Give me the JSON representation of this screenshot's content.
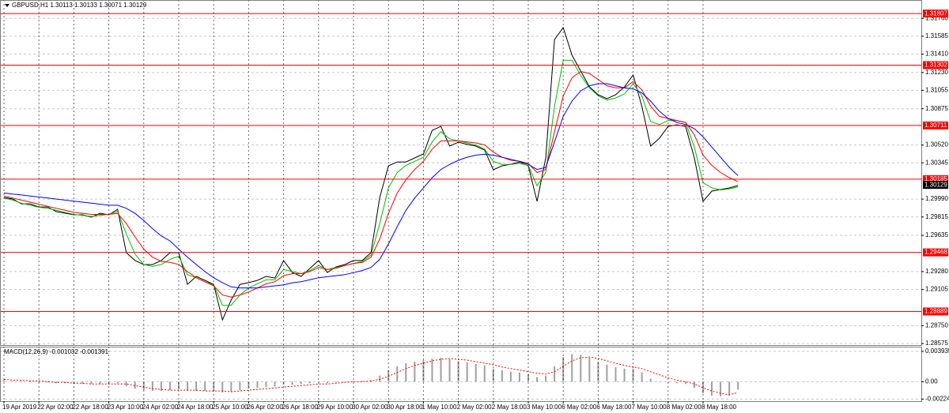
{
  "chart_data": [
    {
      "type": "line",
      "title": "GBPUSD,H1  1.30113 1.30133 1.30071 1.30129",
      "categories": [
        "19 Apr 2019",
        null,
        null,
        null,
        "22 Apr 02:00",
        null,
        null,
        null,
        "22 Apr 18:00",
        null,
        null,
        null,
        "23 Apr 10:00",
        null,
        null,
        null,
        "24 Apr 02:00",
        null,
        null,
        null,
        "24 Apr 18:00",
        null,
        null,
        null,
        "25 Apr 10:00",
        null,
        null,
        null,
        "26 Apr 02:00",
        null,
        null,
        null,
        "26 Apr 18:00",
        null,
        null,
        null,
        "29 Apr 10:00",
        null,
        null,
        null,
        "30 Apr 02:00",
        null,
        null,
        null,
        "30 Apr 18:00",
        null,
        null,
        null,
        "1 May 10:00",
        null,
        null,
        null,
        "2 May 02:00",
        null,
        null,
        null,
        "2 May 18:00",
        null,
        null,
        null,
        "3 May 10:00",
        null,
        null,
        null,
        "6 May 02:00",
        null,
        null,
        null,
        "6 May 18:00",
        null,
        null,
        null,
        "7 May 10:00",
        null,
        null,
        null,
        "8 May 02:00",
        null,
        null,
        null,
        "8 May 18:00",
        null,
        null,
        null,
        null
      ],
      "series": [
        {
          "color": "#000000",
          "values": [
            1.30006,
            1.29991,
            1.29944,
            1.29944,
            1.29913,
            1.29913,
            1.29867,
            1.29852,
            1.29836,
            1.29836,
            1.29813,
            1.29852,
            1.29836,
            1.2989,
            1.29465,
            1.29388,
            1.29349,
            1.29349,
            1.29388,
            1.29465,
            1.29465,
            1.29155,
            1.29233,
            1.29194,
            1.29155,
            1.28807,
            1.29001,
            1.29155,
            1.29171,
            1.29194,
            1.29233,
            1.29217,
            1.29388,
            1.29271,
            1.29233,
            1.2931,
            1.29388,
            1.29271,
            1.29326,
            1.29349,
            1.29388,
            1.29388,
            1.29465,
            1.30006,
            1.30316,
            1.30354,
            1.30354,
            1.30393,
            1.30432,
            1.30664,
            1.30702,
            1.30509,
            1.30548,
            1.30525,
            1.30509,
            1.3047,
            1.30277,
            1.30316,
            1.30331,
            1.30354,
            1.30316,
            1.29968,
            1.30393,
            1.31553,
            1.31669,
            1.31399,
            1.31244,
            1.31089,
            1.31012,
            1.30973,
            1.31012,
            1.31089,
            1.31205,
            1.30896,
            1.30509,
            1.30586,
            1.30702,
            1.30718,
            1.30702,
            1.30393,
            1.29968,
            1.30068,
            1.30084,
            1.30099,
            1.30122
          ]
        },
        {
          "color": "#00c000",
          "values": [
            1.3,
            1.2998,
            1.2995,
            1.2993,
            1.2991,
            1.299,
            1.2988,
            1.2986,
            1.2984,
            1.2983,
            1.2982,
            1.2983,
            1.2984,
            1.2987,
            1.2965,
            1.2945,
            1.2935,
            1.2933,
            1.2935,
            1.294,
            1.2943,
            1.2925,
            1.2922,
            1.2918,
            1.2915,
            1.2895,
            1.2895,
            1.2905,
            1.2912,
            1.2916,
            1.292,
            1.292,
            1.293,
            1.2928,
            1.2926,
            1.2929,
            1.2934,
            1.293,
            1.2931,
            1.2934,
            1.2936,
            1.2938,
            1.2944,
            1.2975,
            1.301,
            1.3025,
            1.3032,
            1.3036,
            1.304,
            1.3055,
            1.3065,
            1.3058,
            1.3056,
            1.3054,
            1.3052,
            1.3048,
            1.3036,
            1.3033,
            1.3033,
            1.3034,
            1.3032,
            1.3012,
            1.3025,
            1.309,
            1.3135,
            1.3135,
            1.312,
            1.3108,
            1.31,
            1.3096,
            1.3098,
            1.3102,
            1.3112,
            1.31,
            1.3075,
            1.3072,
            1.3076,
            1.3076,
            1.3074,
            1.305,
            1.3015,
            1.301,
            1.3008,
            1.3009,
            1.3011
          ]
        },
        {
          "color": "#ff0000",
          "values": [
            1.3002,
            1.3,
            1.2998,
            1.2996,
            1.2994,
            1.2992,
            1.299,
            1.2988,
            1.2986,
            1.2985,
            1.2984,
            1.2984,
            1.2984,
            1.2985,
            1.2975,
            1.2962,
            1.295,
            1.2942,
            1.2938,
            1.2937,
            1.2935,
            1.2928,
            1.2922,
            1.2918,
            1.2914,
            1.2905,
            1.2903,
            1.2905,
            1.2908,
            1.2912,
            1.2916,
            1.2918,
            1.2924,
            1.2926,
            1.2926,
            1.2928,
            1.2932,
            1.293,
            1.2932,
            1.2934,
            1.2936,
            1.2937,
            1.2942,
            1.296,
            1.2985,
            1.3005,
            1.3018,
            1.3028,
            1.3036,
            1.3048,
            1.3056,
            1.3056,
            1.3056,
            1.3055,
            1.3054,
            1.3052,
            1.3045,
            1.304,
            1.3037,
            1.3036,
            1.3034,
            1.3025,
            1.3028,
            1.3065,
            1.31,
            1.3118,
            1.3124,
            1.3122,
            1.3116,
            1.311,
            1.3108,
            1.3108,
            1.3114,
            1.3106,
            1.309,
            1.308,
            1.3078,
            1.3076,
            1.3074,
            1.3062,
            1.3042,
            1.3032,
            1.3025,
            1.302,
            1.3016
          ]
        },
        {
          "color": "#0000ff",
          "values": [
            1.3005,
            1.3004,
            1.3003,
            1.3002,
            1.3001,
            1.3,
            1.2999,
            1.2998,
            1.2997,
            1.2996,
            1.2995,
            1.2994,
            1.2993,
            1.2993,
            1.299,
            1.2985,
            1.2978,
            1.297,
            1.2963,
            1.2958,
            1.295,
            1.2942,
            1.2935,
            1.2928,
            1.2922,
            1.2917,
            1.2913,
            1.2912,
            1.2912,
            1.2912,
            1.2913,
            1.2914,
            1.2915,
            1.2917,
            1.2918,
            1.292,
            1.2922,
            1.2923,
            1.2924,
            1.2925,
            1.2927,
            1.2929,
            1.2932,
            1.294,
            1.2955,
            1.2972,
            1.2988,
            1.3,
            1.301,
            1.302,
            1.3028,
            1.3033,
            1.3037,
            1.304,
            1.3042,
            1.3043,
            1.3042,
            1.304,
            1.3038,
            1.3036,
            1.3033,
            1.3028,
            1.303,
            1.3055,
            1.308,
            1.3095,
            1.3105,
            1.311,
            1.3112,
            1.3112,
            1.311,
            1.3108,
            1.3107,
            1.3103,
            1.3095,
            1.3085,
            1.3078,
            1.3074,
            1.3072,
            1.3068,
            1.306,
            1.305,
            1.304,
            1.303,
            1.3022
          ]
        }
      ],
      "ylim": [
        1.2856,
        1.3194
      ],
      "yticks": [
        {
          "value": 1.3176,
          "label": "1.31760"
        },
        1.31585,
        {
          "value": 1.3141,
          "label": "1.31410"
        },
        {
          "value": 1.3123,
          "label": "1.31230"
        },
        1.31055,
        1.30875,
        {
          "value": 1.3052,
          "label": "1.30520"
        },
        1.30345,
        {
          "value": 1.2999,
          "label": "1.29990"
        },
        1.29815,
        1.29635,
        {
          "value": 1.2928,
          "label": "1.29280"
        },
        1.29105,
        {
          "value": 1.2875,
          "label": "1.28750"
        },
        1.28575
      ],
      "levels": [
        1.31807,
        1.31302,
        1.30711,
        1.30185,
        1.29468,
        1.28889
      ],
      "level_color": "#ff0000",
      "last_price": 1.30129,
      "grid": true
    },
    {
      "type": "macd",
      "title": "MACD(12,26,9) -0.001032 -0.001391",
      "series": [
        {
          "style": "histogram",
          "color": "#a0a0a0",
          "values": [
            0.0002,
            0.0001,
            0.0001,
            0,
            -0.0001,
            -0.0001,
            -0.0002,
            -0.0002,
            -0.0003,
            -0.0003,
            -0.0003,
            -0.0003,
            -0.0003,
            -0.0002,
            -0.0006,
            -0.0009,
            -0.0011,
            -0.0012,
            -0.0012,
            -0.0011,
            -0.001,
            -0.0012,
            -0.0012,
            -0.0012,
            -0.0012,
            -0.0014,
            -0.0013,
            -0.0011,
            -0.0009,
            -0.0008,
            -0.0007,
            -0.0006,
            -0.0004,
            -0.0004,
            -0.0003,
            -0.0002,
            -0.0001,
            -0.0002,
            -0.0001,
            0,
            0.0001,
            0.0001,
            0.0002,
            0.0008,
            0.0015,
            0.002,
            0.0024,
            0.0026,
            0.0028,
            0.003,
            0.0031,
            0.0029,
            0.0027,
            0.0025,
            0.0023,
            0.0021,
            0.0017,
            0.0015,
            0.0013,
            0.0012,
            0.001,
            0.0006,
            0.0008,
            0.002,
            0.0032,
            0.0036,
            0.0035,
            0.0031,
            0.0026,
            0.0022,
            0.0019,
            0.0017,
            0.0017,
            0.0012,
            0.0004,
            0,
            -0.0001,
            -0.0002,
            -0.0003,
            -0.0008,
            -0.0015,
            -0.0018,
            -0.0019,
            -0.0018,
            -0.00103
          ]
        },
        {
          "style": "dotted",
          "color": "#ff0000",
          "values": [
            0.0003,
            0.0002,
            0.0002,
            0.0001,
            0.0001,
            0,
            -0.0001,
            -0.0001,
            -0.0002,
            -0.0002,
            -0.0003,
            -0.0003,
            -0.0003,
            -0.0003,
            -0.0003,
            -0.0005,
            -0.0007,
            -0.0009,
            -0.001,
            -0.0011,
            -0.0011,
            -0.0011,
            -0.0011,
            -0.0012,
            -0.0012,
            -0.0012,
            -0.0013,
            -0.0012,
            -0.0011,
            -0.001,
            -0.0009,
            -0.0008,
            -0.0007,
            -0.0006,
            -0.0005,
            -0.0004,
            -0.0003,
            -0.0003,
            -0.0002,
            -0.0001,
            0,
            0,
            0.0001,
            0.0003,
            0.0007,
            0.0012,
            0.0017,
            0.0021,
            0.0024,
            0.0027,
            0.0029,
            0.003,
            0.0029,
            0.0028,
            0.0026,
            0.0024,
            0.0022,
            0.0019,
            0.0017,
            0.0015,
            0.0013,
            0.0011,
            0.001,
            0.0013,
            0.002,
            0.0027,
            0.0031,
            0.0032,
            0.003,
            0.0027,
            0.0024,
            0.0021,
            0.0019,
            0.0017,
            0.0013,
            0.0009,
            0.0005,
            0.0002,
            0,
            -0.0003,
            -0.0008,
            -0.0012,
            -0.0015,
            -0.0017,
            -0.00139
          ]
        }
      ],
      "ylim": [
        -0.00252,
        0.00454
      ],
      "yticks": [
        0.003935,
        {
          "value": 0,
          "label": "0.00"
        },
        -0.002248
      ],
      "grid": true
    }
  ]
}
